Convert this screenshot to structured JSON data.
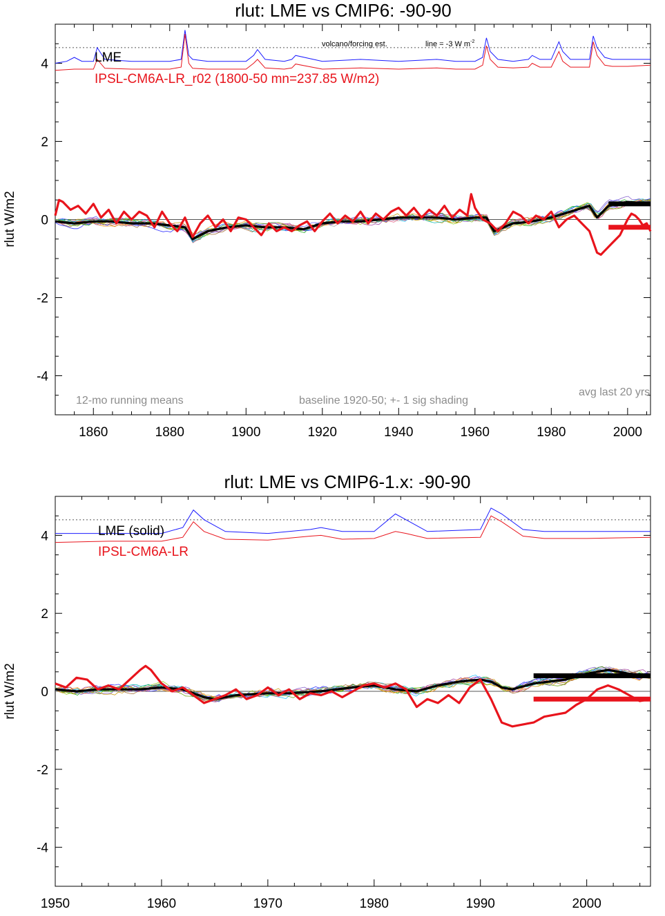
{
  "chart_data": [
    {
      "type": "line",
      "title": "rlut: LME vs CMIP6: -90-90",
      "ylabel": "rlut W/m2",
      "xlabel": "",
      "xlim": [
        1850,
        2006
      ],
      "ylim": [
        -5,
        5
      ],
      "xticks": [
        1860,
        1880,
        1900,
        1920,
        1940,
        1960,
        1980,
        2000
      ],
      "yticks": [
        -4,
        -2,
        0,
        2,
        4
      ],
      "reference_line": 0,
      "dotted_line": 4.4,
      "legend": [
        {
          "label": "LME",
          "color": "#000000"
        },
        {
          "label": "IPSL-CM6A-LR_r02 (1800-50 mn=237.85 W/m2)",
          "color": "#e8141c"
        }
      ],
      "annotations": {
        "volcano": "volcano/forcing est.",
        "line_note": "line = -3 W m",
        "line_note_sup": "-2",
        "running_means": "12-mo running means",
        "baseline": "baseline 1920-50; +- 1 sig shading",
        "avg_last": "avg last 20 yrs"
      },
      "forcing_blue": {
        "color": "#1a1aff",
        "x": [
          1850,
          1853,
          1855,
          1857,
          1860,
          1861,
          1863,
          1870,
          1880,
          1883,
          1884,
          1885,
          1886,
          1890,
          1900,
          1902,
          1903,
          1905,
          1910,
          1912,
          1913,
          1920,
          1930,
          1940,
          1950,
          1955,
          1960,
          1962,
          1963,
          1964,
          1966,
          1970,
          1974,
          1975,
          1977,
          1980,
          1982,
          1983,
          1985,
          1990,
          1991,
          1992,
          1994,
          1996,
          2000,
          2006
        ],
        "y": [
          4.0,
          4.05,
          4.15,
          4.05,
          4.05,
          4.4,
          4.1,
          4.05,
          4.05,
          4.1,
          4.85,
          4.2,
          4.1,
          4.05,
          4.05,
          4.2,
          4.35,
          4.1,
          4.05,
          4.1,
          4.2,
          4.05,
          4.1,
          4.05,
          4.1,
          4.05,
          4.05,
          4.15,
          4.65,
          4.3,
          4.1,
          4.05,
          4.1,
          4.2,
          4.1,
          4.1,
          4.55,
          4.3,
          4.1,
          4.1,
          4.7,
          4.4,
          4.15,
          4.1,
          4.1,
          4.1
        ]
      },
      "forcing_red": {
        "color": "#e8141c",
        "x": [
          1850,
          1855,
          1860,
          1861,
          1863,
          1870,
          1880,
          1883,
          1884,
          1885,
          1886,
          1890,
          1900,
          1902,
          1903,
          1905,
          1910,
          1912,
          1913,
          1920,
          1930,
          1940,
          1950,
          1955,
          1960,
          1962,
          1963,
          1964,
          1966,
          1970,
          1974,
          1975,
          1977,
          1980,
          1982,
          1983,
          1985,
          1990,
          1991,
          1992,
          1994,
          1996,
          2000,
          2006
        ],
        "y": [
          3.82,
          3.85,
          3.85,
          4.1,
          3.87,
          3.85,
          3.85,
          3.9,
          4.75,
          4.0,
          3.87,
          3.85,
          3.85,
          4.0,
          4.1,
          3.88,
          3.85,
          3.88,
          3.98,
          3.85,
          3.88,
          3.85,
          3.88,
          3.85,
          3.85,
          3.95,
          4.45,
          4.1,
          3.9,
          3.88,
          3.9,
          4.0,
          3.9,
          3.9,
          4.3,
          4.05,
          3.9,
          3.9,
          4.55,
          4.2,
          3.95,
          3.92,
          3.92,
          3.95
        ]
      },
      "lme_mean": {
        "color": "#000000",
        "x": [
          1850,
          1855,
          1860,
          1865,
          1870,
          1875,
          1880,
          1884,
          1886,
          1890,
          1895,
          1900,
          1905,
          1910,
          1915,
          1920,
          1925,
          1930,
          1935,
          1940,
          1945,
          1950,
          1955,
          1960,
          1963,
          1965,
          1970,
          1975,
          1980,
          1985,
          1990,
          1992,
          1995,
          2000,
          2006
        ],
        "y": [
          -0.05,
          -0.1,
          -0.05,
          -0.05,
          -0.1,
          -0.1,
          -0.15,
          -0.2,
          -0.5,
          -0.3,
          -0.2,
          -0.15,
          -0.2,
          -0.2,
          -0.25,
          -0.1,
          -0.05,
          -0.05,
          0.0,
          0.05,
          0.05,
          0.05,
          0.0,
          0.05,
          0.05,
          -0.3,
          -0.1,
          -0.05,
          0.05,
          0.2,
          0.35,
          0.05,
          0.35,
          0.45,
          0.4
        ]
      },
      "ipsl": {
        "color": "#e8141c",
        "x": [
          1850,
          1851,
          1852,
          1854,
          1856,
          1858,
          1860,
          1862,
          1864,
          1866,
          1868,
          1870,
          1872,
          1874,
          1876,
          1878,
          1880,
          1882,
          1884,
          1886,
          1888,
          1890,
          1892,
          1894,
          1896,
          1898,
          1900,
          1902,
          1904,
          1906,
          1908,
          1910,
          1912,
          1914,
          1916,
          1918,
          1920,
          1922,
          1924,
          1926,
          1928,
          1930,
          1932,
          1934,
          1936,
          1938,
          1940,
          1942,
          1944,
          1946,
          1948,
          1950,
          1952,
          1954,
          1956,
          1958,
          1959,
          1960,
          1962,
          1964,
          1966,
          1968,
          1970,
          1972,
          1974,
          1976,
          1978,
          1980,
          1982,
          1984,
          1986,
          1988,
          1990,
          1992,
          1993,
          1994,
          1996,
          1998,
          2000,
          2001,
          2002,
          2003,
          2004,
          2005,
          2006
        ],
        "y": [
          0.1,
          0.5,
          0.45,
          0.25,
          0.35,
          0.15,
          0.4,
          0.05,
          0.25,
          -0.1,
          0.2,
          0.0,
          0.2,
          0.1,
          -0.2,
          0.2,
          -0.1,
          -0.3,
          0.05,
          -0.45,
          -0.1,
          0.1,
          -0.2,
          0.0,
          -0.3,
          0.05,
          0.0,
          -0.2,
          -0.4,
          -0.1,
          -0.3,
          -0.2,
          -0.3,
          -0.15,
          -0.05,
          -0.3,
          -0.05,
          0.15,
          -0.1,
          0.1,
          -0.05,
          0.2,
          -0.1,
          0.15,
          0.0,
          0.2,
          0.3,
          0.1,
          0.3,
          0.05,
          0.25,
          0.1,
          0.35,
          0.05,
          0.25,
          0.1,
          0.65,
          0.3,
          0.0,
          -0.1,
          -0.3,
          -0.1,
          0.2,
          0.1,
          -0.1,
          0.1,
          0.0,
          0.2,
          -0.2,
          0.0,
          0.1,
          -0.1,
          -0.3,
          -0.85,
          -0.9,
          -0.8,
          -0.6,
          -0.4,
          0.0,
          0.15,
          0.1,
          0.0,
          -0.15,
          -0.1,
          -0.3
        ]
      },
      "ensemble_colors": [
        "#1a1aff",
        "#19c0ff",
        "#0aa00a",
        "#8cc800",
        "#a03ca0",
        "#7850c8",
        "#c89600",
        "#a06428",
        "#aaaaaa",
        "#dc5078",
        "#fa8c00",
        "#5a5aff",
        "#00b4b4",
        "#64a000"
      ],
      "ensemble_spread": 0.12,
      "avg_last_20": {
        "lme": 0.4,
        "ipsl": -0.2,
        "x": [
          1995,
          2006
        ]
      }
    },
    {
      "type": "line",
      "title": "rlut: LME vs CMIP6-1.x: -90-90",
      "ylabel": "rlut W/m2",
      "xlabel": "",
      "xlim": [
        1950,
        2006
      ],
      "ylim": [
        -5,
        5
      ],
      "xticks": [
        1950,
        1960,
        1970,
        1980,
        1990,
        2000
      ],
      "yticks": [
        -4,
        -2,
        0,
        2,
        4
      ],
      "reference_line": 0,
      "dotted_line": 4.4,
      "legend": [
        {
          "label": "LME (solid)",
          "color": "#000000"
        },
        {
          "label": "IPSL-CM6A-LR",
          "color": "#e8141c"
        }
      ],
      "forcing_blue": {
        "color": "#1a1aff",
        "x": [
          1950,
          1955,
          1960,
          1962,
          1963,
          1964,
          1966,
          1970,
          1974,
          1975,
          1977,
          1980,
          1982,
          1983,
          1985,
          1990,
          1991,
          1992,
          1994,
          1996,
          2000,
          2006
        ],
        "y": [
          4.05,
          4.05,
          4.05,
          4.2,
          4.65,
          4.4,
          4.1,
          4.05,
          4.15,
          4.2,
          4.1,
          4.1,
          4.55,
          4.4,
          4.1,
          4.15,
          4.7,
          4.55,
          4.15,
          4.1,
          4.1,
          4.1
        ]
      },
      "forcing_red": {
        "color": "#e8141c",
        "x": [
          1950,
          1955,
          1960,
          1962,
          1963,
          1964,
          1966,
          1970,
          1974,
          1975,
          1977,
          1980,
          1982,
          1983,
          1985,
          1990,
          1991,
          1992,
          1994,
          1996,
          2000,
          2006
        ],
        "y": [
          3.82,
          3.85,
          3.85,
          3.95,
          4.35,
          4.1,
          3.9,
          3.88,
          3.98,
          4.0,
          3.9,
          3.92,
          4.1,
          4.05,
          3.92,
          3.95,
          4.5,
          4.35,
          3.98,
          3.92,
          3.92,
          3.95
        ]
      },
      "lme_mean": {
        "color": "#000000",
        "x": [
          1950,
          1952,
          1954,
          1956,
          1958,
          1960,
          1962,
          1964,
          1965,
          1967,
          1970,
          1972,
          1975,
          1978,
          1980,
          1982,
          1984,
          1986,
          1988,
          1990,
          1991,
          1992,
          1993,
          1995,
          1998,
          2000,
          2002,
          2004,
          2006
        ],
        "y": [
          0.05,
          0.0,
          0.05,
          0.05,
          0.05,
          0.1,
          0.05,
          -0.15,
          -0.2,
          -0.1,
          -0.05,
          -0.05,
          0.0,
          0.1,
          0.15,
          0.05,
          0.0,
          0.15,
          0.25,
          0.3,
          0.25,
          0.1,
          0.05,
          0.2,
          0.3,
          0.45,
          0.55,
          0.45,
          0.4
        ]
      },
      "ipsl": {
        "color": "#e8141c",
        "x": [
          1950,
          1951,
          1952,
          1953,
          1954,
          1955,
          1956,
          1957,
          1958,
          1958.5,
          1959,
          1960,
          1961,
          1962,
          1963,
          1964,
          1965,
          1966,
          1967,
          1968,
          1969,
          1970,
          1971,
          1972,
          1973,
          1974,
          1975,
          1976,
          1977,
          1978,
          1979,
          1980,
          1981,
          1982,
          1983,
          1984,
          1985,
          1986,
          1987,
          1988,
          1989,
          1990,
          1991,
          1992,
          1993,
          1994,
          1995,
          1996,
          1997,
          1998,
          1999,
          2000,
          2001,
          2002,
          2003,
          2004,
          2005,
          2006
        ],
        "y": [
          0.2,
          0.1,
          0.35,
          0.3,
          0.05,
          0.15,
          0.05,
          0.3,
          0.55,
          0.65,
          0.55,
          0.2,
          0.0,
          0.1,
          -0.1,
          -0.3,
          -0.2,
          -0.1,
          0.05,
          -0.2,
          -0.1,
          0.1,
          -0.1,
          0.05,
          -0.2,
          -0.05,
          -0.1,
          0.0,
          -0.15,
          0.0,
          0.15,
          0.2,
          0.1,
          0.2,
          0.05,
          -0.4,
          -0.2,
          -0.3,
          -0.1,
          -0.3,
          0.1,
          0.3,
          -0.2,
          -0.8,
          -0.9,
          -0.85,
          -0.8,
          -0.65,
          -0.6,
          -0.55,
          -0.35,
          -0.2,
          0.05,
          0.15,
          0.05,
          -0.1,
          -0.25,
          -0.2
        ]
      },
      "ensemble_colors": [
        "#1a1aff",
        "#19c0ff",
        "#0aa00a",
        "#8cc800",
        "#a03ca0",
        "#7850c8",
        "#c89600",
        "#a06428",
        "#aaaaaa",
        "#dc5078",
        "#fa8c00",
        "#5a5aff",
        "#00b4b4",
        "#64a000"
      ],
      "ensemble_spread": 0.12,
      "avg_last_20": {
        "lme": 0.4,
        "ipsl": -0.2,
        "x": [
          1995,
          2006
        ]
      }
    }
  ]
}
